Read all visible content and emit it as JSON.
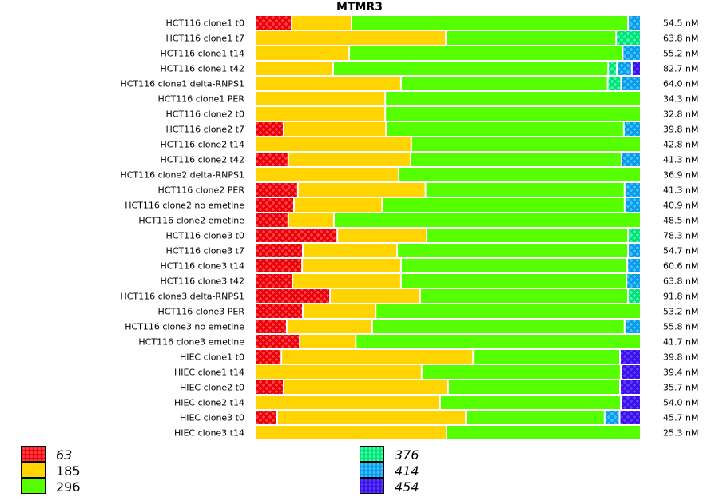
{
  "chart_data": {
    "type": "bar",
    "orientation": "horizontal",
    "stacked": true,
    "normalized": true,
    "title": "MTMR3",
    "xlabel": "",
    "ylabel": "",
    "xlim": [
      0,
      100
    ],
    "grid": false,
    "legend_position": "bottom",
    "legend": [
      {
        "key": "63",
        "label": "63",
        "color": "#e8000b",
        "pattern": true,
        "italic": true
      },
      {
        "key": "185",
        "label": "185",
        "color": "#ffd400",
        "pattern": false,
        "italic": false
      },
      {
        "key": "296",
        "label": "296",
        "color": "#55ff00",
        "pattern": false,
        "italic": false
      },
      {
        "key": "376",
        "label": "376",
        "color": "#00e07a",
        "pattern": true,
        "italic": true
      },
      {
        "key": "414",
        "label": "414",
        "color": "#0a9be8",
        "pattern": true,
        "italic": true
      },
      {
        "key": "454",
        "label": "454",
        "color": "#3a10e8",
        "pattern": true,
        "italic": true
      }
    ],
    "series_keys": [
      "63",
      "185",
      "296",
      "376",
      "414",
      "454"
    ],
    "categories": [
      "HCT116 clone1 t0",
      "HCT116 clone1 t7",
      "HCT116 clone1 t14",
      "HCT116 clone1 t42",
      "HCT116 clone1 delta-RNPS1",
      "HCT116 clone1 PER",
      "HCT116 clone2 t0",
      "HCT116 clone2 t7",
      "HCT116 clone2 t14",
      "HCT116 clone2 t42",
      "HCT116 clone2 delta-RNPS1",
      "HCT116 clone2 PER",
      "HCT116 clone2 no emetine",
      "HCT116 clone2 emetine",
      "HCT116 clone3 t0",
      "HCT116 clone3 t7",
      "HCT116 clone3 t14",
      "HCT116 clone3 t42",
      "HCT116 clone3 delta-RNPS1",
      "HCT116 clone3 PER",
      "HCT116 clone3 no emetine",
      "HCT116 clone3 emetine",
      "HIEC clone1 t0",
      "HIEC clone1 t14",
      "HIEC clone2 t0",
      "HIEC clone2 t14",
      "HIEC clone3 t0",
      "HIEC clone3 t14"
    ],
    "values_percent": [
      [
        9.4,
        15.6,
        72.1,
        0,
        2.9,
        0
      ],
      [
        0,
        49.6,
        44.4,
        6.0,
        0,
        0
      ],
      [
        0,
        24.4,
        71.3,
        0,
        4.3,
        0
      ],
      [
        0,
        20.2,
        71.7,
        2.3,
        3.9,
        1.9
      ],
      [
        0,
        37.9,
        53.9,
        3.5,
        4.7,
        0
      ],
      [
        0,
        33.8,
        66.2,
        0,
        0,
        0
      ],
      [
        0,
        33.8,
        66.2,
        0,
        0,
        0
      ],
      [
        7.3,
        26.7,
        62.0,
        0,
        4.0,
        0
      ],
      [
        0,
        40.6,
        59.4,
        0,
        0,
        0
      ],
      [
        8.5,
        31.9,
        55.0,
        0,
        4.6,
        0
      ],
      [
        0,
        37.3,
        62.7,
        0,
        0,
        0
      ],
      [
        11.0,
        33.3,
        51.9,
        0,
        3.8,
        0
      ],
      [
        10.0,
        23.0,
        63.2,
        0,
        3.8,
        0
      ],
      [
        8.5,
        11.9,
        79.6,
        0,
        0,
        0
      ],
      [
        21.3,
        23.3,
        52.5,
        2.9,
        0,
        0
      ],
      [
        12.3,
        24.6,
        60.2,
        0,
        2.9,
        0
      ],
      [
        12.1,
        25.8,
        59.0,
        0,
        3.1,
        0
      ],
      [
        9.6,
        28.3,
        58.8,
        0,
        3.3,
        0
      ],
      [
        19.4,
        23.5,
        54.2,
        2.9,
        0,
        0
      ],
      [
        12.3,
        19.0,
        68.7,
        0,
        0,
        0
      ],
      [
        8.1,
        22.3,
        65.8,
        0,
        3.8,
        0
      ],
      [
        11.5,
        14.6,
        73.9,
        0,
        0,
        0
      ],
      [
        6.7,
        50.0,
        38.3,
        0,
        0,
        5.0
      ],
      [
        0,
        43.3,
        51.9,
        0,
        0,
        4.8
      ],
      [
        7.3,
        42.9,
        44.8,
        0,
        0,
        5.0
      ],
      [
        0,
        48.1,
        47.1,
        0,
        0,
        4.8
      ],
      [
        5.6,
        49.2,
        36.2,
        0,
        3.9,
        5.1
      ],
      [
        0,
        49.8,
        50.2,
        0,
        0,
        0
      ]
    ],
    "right_labels": [
      "54.5 nM",
      "63.8 nM",
      "55.2 nM",
      "82.7 nM",
      "64.0 nM",
      "34.3 nM",
      "32.8 nM",
      "39.8 nM",
      "42.8 nM",
      "41.3 nM",
      "36.9 nM",
      "41.3 nM",
      "40.9 nM",
      "48.5 nM",
      "78.3 nM",
      "54.7 nM",
      "60.6 nM",
      "63.8 nM",
      "91.8 nM",
      "53.2 nM",
      "55.8 nM",
      "41.7 nM",
      "39.8 nM",
      "39.4 nM",
      "35.7 nM",
      "54.0 nM",
      "45.7 nM",
      "25.3 nM"
    ]
  }
}
